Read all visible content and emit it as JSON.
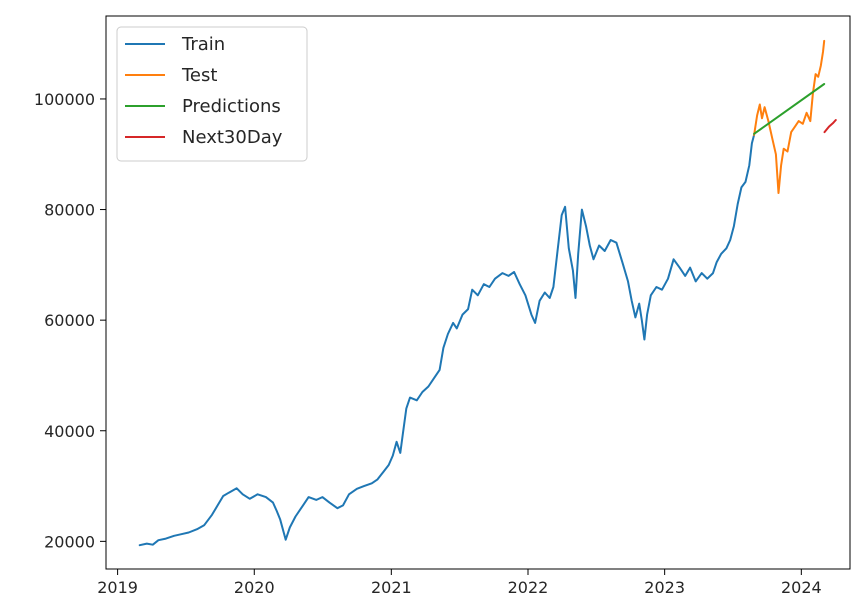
{
  "chart_data": {
    "type": "line",
    "x_type": "date",
    "xlim": [
      "2018-12-01",
      "2024-05-10"
    ],
    "ylim": [
      15000,
      115000
    ],
    "x_ticks": [
      "2019-01-01",
      "2020-01-01",
      "2021-01-01",
      "2022-01-01",
      "2023-01-01",
      "2024-01-01"
    ],
    "x_tick_labels": [
      "2019",
      "2020",
      "2021",
      "2022",
      "2023",
      "2024"
    ],
    "y_ticks": [
      20000,
      40000,
      60000,
      80000,
      100000
    ],
    "y_tick_labels": [
      "20000",
      "40000",
      "60000",
      "80000",
      "100000"
    ],
    "grid": false,
    "legend": {
      "position": "top-left"
    },
    "series": [
      {
        "name": "Train",
        "color": "#1f77b4",
        "points": [
          [
            "2019-03-01",
            19300
          ],
          [
            "2019-03-20",
            19600
          ],
          [
            "2019-04-05",
            19400
          ],
          [
            "2019-04-20",
            20200
          ],
          [
            "2019-05-10",
            20500
          ],
          [
            "2019-06-01",
            21000
          ],
          [
            "2019-06-20",
            21300
          ],
          [
            "2019-07-10",
            21600
          ],
          [
            "2019-08-01",
            22200
          ],
          [
            "2019-08-20",
            22900
          ],
          [
            "2019-09-10",
            24800
          ],
          [
            "2019-09-25",
            26500
          ],
          [
            "2019-10-10",
            28200
          ],
          [
            "2019-10-25",
            28800
          ],
          [
            "2019-11-15",
            29600
          ],
          [
            "2019-12-01",
            28500
          ],
          [
            "2019-12-20",
            27700
          ],
          [
            "2020-01-10",
            28500
          ],
          [
            "2020-02-01",
            28000
          ],
          [
            "2020-02-20",
            27000
          ],
          [
            "2020-03-01",
            25500
          ],
          [
            "2020-03-10",
            24000
          ],
          [
            "2020-03-20",
            21500
          ],
          [
            "2020-03-25",
            20300
          ],
          [
            "2020-04-05",
            22500
          ],
          [
            "2020-04-20",
            24500
          ],
          [
            "2020-05-10",
            26500
          ],
          [
            "2020-05-25",
            28000
          ],
          [
            "2020-06-15",
            27500
          ],
          [
            "2020-07-01",
            28000
          ],
          [
            "2020-07-20",
            27000
          ],
          [
            "2020-08-10",
            26000
          ],
          [
            "2020-08-25",
            26500
          ],
          [
            "2020-09-10",
            28500
          ],
          [
            "2020-10-01",
            29500
          ],
          [
            "2020-10-20",
            30000
          ],
          [
            "2020-11-10",
            30500
          ],
          [
            "2020-11-25",
            31200
          ],
          [
            "2020-12-10",
            32500
          ],
          [
            "2020-12-25",
            33800
          ],
          [
            "2021-01-05",
            35500
          ],
          [
            "2021-01-15",
            38000
          ],
          [
            "2021-01-25",
            36000
          ],
          [
            "2021-02-01",
            39500
          ],
          [
            "2021-02-10",
            44000
          ],
          [
            "2021-02-20",
            46000
          ],
          [
            "2021-03-10",
            45500
          ],
          [
            "2021-03-25",
            47000
          ],
          [
            "2021-04-10",
            48000
          ],
          [
            "2021-04-25",
            49500
          ],
          [
            "2021-05-10",
            51000
          ],
          [
            "2021-05-20",
            55000
          ],
          [
            "2021-06-01",
            57500
          ],
          [
            "2021-06-15",
            59500
          ],
          [
            "2021-06-25",
            58500
          ],
          [
            "2021-07-10",
            61000
          ],
          [
            "2021-07-25",
            62000
          ],
          [
            "2021-08-05",
            65500
          ],
          [
            "2021-08-20",
            64500
          ],
          [
            "2021-09-05",
            66500
          ],
          [
            "2021-09-20",
            66000
          ],
          [
            "2021-10-05",
            67500
          ],
          [
            "2021-10-25",
            68500
          ],
          [
            "2021-11-10",
            68000
          ],
          [
            "2021-11-25",
            68700
          ],
          [
            "2021-12-10",
            66500
          ],
          [
            "2021-12-25",
            64500
          ],
          [
            "2022-01-10",
            61000
          ],
          [
            "2022-01-20",
            59500
          ],
          [
            "2022-02-01",
            63500
          ],
          [
            "2022-02-15",
            65000
          ],
          [
            "2022-02-28",
            64000
          ],
          [
            "2022-03-10",
            66000
          ],
          [
            "2022-03-20",
            72000
          ],
          [
            "2022-04-01",
            79000
          ],
          [
            "2022-04-10",
            80500
          ],
          [
            "2022-04-20",
            73000
          ],
          [
            "2022-05-01",
            69000
          ],
          [
            "2022-05-08",
            64000
          ],
          [
            "2022-05-15",
            72000
          ],
          [
            "2022-05-25",
            80000
          ],
          [
            "2022-06-05",
            77000
          ],
          [
            "2022-06-15",
            73500
          ],
          [
            "2022-06-25",
            71000
          ],
          [
            "2022-07-10",
            73500
          ],
          [
            "2022-07-25",
            72500
          ],
          [
            "2022-08-10",
            74500
          ],
          [
            "2022-08-25",
            74000
          ],
          [
            "2022-09-10",
            70500
          ],
          [
            "2022-09-25",
            67000
          ],
          [
            "2022-10-05",
            63500
          ],
          [
            "2022-10-15",
            60500
          ],
          [
            "2022-10-25",
            63000
          ],
          [
            "2022-11-01",
            60000
          ],
          [
            "2022-11-08",
            56500
          ],
          [
            "2022-11-15",
            61000
          ],
          [
            "2022-11-25",
            64500
          ],
          [
            "2022-12-10",
            66000
          ],
          [
            "2022-12-25",
            65500
          ],
          [
            "2023-01-10",
            67500
          ],
          [
            "2023-01-25",
            71000
          ],
          [
            "2023-02-10",
            69500
          ],
          [
            "2023-02-25",
            68000
          ],
          [
            "2023-03-10",
            69500
          ],
          [
            "2023-03-25",
            67000
          ],
          [
            "2023-04-10",
            68500
          ],
          [
            "2023-04-25",
            67500
          ],
          [
            "2023-05-10",
            68500
          ],
          [
            "2023-05-20",
            70500
          ],
          [
            "2023-06-01",
            72000
          ],
          [
            "2023-06-15",
            73000
          ],
          [
            "2023-06-25",
            74500
          ],
          [
            "2023-07-05",
            77000
          ],
          [
            "2023-07-15",
            81000
          ],
          [
            "2023-07-25",
            84000
          ],
          [
            "2023-08-05",
            85000
          ],
          [
            "2023-08-15",
            88000
          ],
          [
            "2023-08-22",
            92000
          ],
          [
            "2023-08-28",
            93500
          ]
        ]
      },
      {
        "name": "Test",
        "color": "#ff7f0e",
        "points": [
          [
            "2023-08-28",
            93500
          ],
          [
            "2023-09-05",
            97000
          ],
          [
            "2023-09-12",
            99000
          ],
          [
            "2023-09-18",
            96500
          ],
          [
            "2023-09-25",
            98500
          ],
          [
            "2023-10-05",
            96000
          ],
          [
            "2023-10-15",
            93000
          ],
          [
            "2023-10-25",
            90000
          ],
          [
            "2023-11-01",
            83000
          ],
          [
            "2023-11-08",
            88000
          ],
          [
            "2023-11-15",
            91000
          ],
          [
            "2023-11-25",
            90500
          ],
          [
            "2023-12-05",
            94000
          ],
          [
            "2023-12-15",
            95000
          ],
          [
            "2023-12-25",
            96000
          ],
          [
            "2024-01-05",
            95500
          ],
          [
            "2024-01-15",
            97500
          ],
          [
            "2024-01-25",
            96000
          ],
          [
            "2024-02-01",
            101000
          ],
          [
            "2024-02-08",
            104500
          ],
          [
            "2024-02-15",
            104000
          ],
          [
            "2024-02-22",
            106000
          ],
          [
            "2024-02-28",
            108500
          ],
          [
            "2024-03-02",
            110500
          ]
        ]
      },
      {
        "name": "Predictions",
        "color": "#2ca02c",
        "points": [
          [
            "2023-08-28",
            93700
          ],
          [
            "2024-03-02",
            102700
          ]
        ]
      },
      {
        "name": "Next30Day",
        "color": "#d62728",
        "points": [
          [
            "2024-03-03",
            94000
          ],
          [
            "2024-03-15",
            95000
          ],
          [
            "2024-03-25",
            95600
          ],
          [
            "2024-04-02",
            96200
          ]
        ]
      }
    ]
  }
}
